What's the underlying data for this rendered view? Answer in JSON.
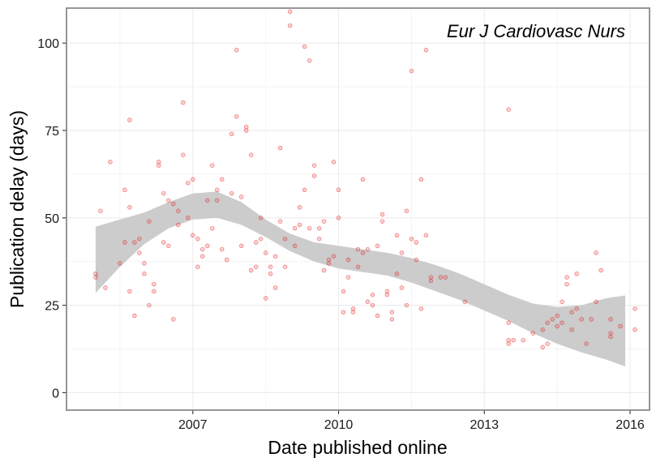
{
  "chart_data": {
    "type": "scatter",
    "title": "",
    "annotation": "Eur J Cardiovasc Nurs",
    "xlabel": "Date published online",
    "ylabel": "Publication delay (days)",
    "x_ticks": [
      2007,
      2010,
      2013,
      2016
    ],
    "y_ticks": [
      0,
      25,
      50,
      75,
      100
    ],
    "xlim": [
      2004.4,
      2016.4
    ],
    "ylim": [
      -5,
      110
    ],
    "grid": true,
    "legend": "none",
    "point_color": "#e41a1c",
    "point_alpha": 0.2,
    "band_color": "#cccccc",
    "smooth": {
      "x": [
        2005.0,
        2005.5,
        2006.0,
        2006.5,
        2007.0,
        2007.5,
        2008.0,
        2008.5,
        2009.0,
        2009.5,
        2010.0,
        2010.5,
        2011.0,
        2011.5,
        2012.0,
        2012.5,
        2013.0,
        2013.5,
        2014.0,
        2014.5,
        2015.0,
        2015.5,
        2015.9
      ],
      "lower": [
        28.5,
        36.0,
        42.5,
        47.0,
        49.5,
        50.0,
        48.0,
        44.5,
        40.5,
        37.5,
        35.5,
        34.5,
        33.5,
        31.5,
        29.0,
        26.5,
        23.5,
        20.5,
        17.0,
        14.0,
        11.5,
        9.5,
        7.5
      ],
      "upper": [
        47.5,
        49.5,
        51.5,
        54.5,
        57.0,
        57.5,
        54.5,
        49.5,
        45.5,
        43.0,
        42.0,
        41.0,
        40.0,
        38.5,
        36.5,
        34.0,
        31.0,
        28.0,
        25.5,
        24.5,
        25.0,
        27.0,
        27.8
      ]
    },
    "points": [
      [
        2005.0,
        34
      ],
      [
        2005.0,
        33
      ],
      [
        2005.1,
        52
      ],
      [
        2005.2,
        30
      ],
      [
        2005.3,
        66
      ],
      [
        2005.5,
        37
      ],
      [
        2005.6,
        43
      ],
      [
        2005.6,
        58
      ],
      [
        2005.7,
        78
      ],
      [
        2005.7,
        53
      ],
      [
        2005.7,
        29
      ],
      [
        2005.8,
        22
      ],
      [
        2005.8,
        43
      ],
      [
        2005.9,
        40
      ],
      [
        2005.9,
        44
      ],
      [
        2006.0,
        34
      ],
      [
        2006.0,
        37
      ],
      [
        2006.1,
        49
      ],
      [
        2006.1,
        25
      ],
      [
        2006.2,
        29
      ],
      [
        2006.2,
        31
      ],
      [
        2006.3,
        66
      ],
      [
        2006.3,
        65
      ],
      [
        2006.4,
        57
      ],
      [
        2006.4,
        43
      ],
      [
        2006.5,
        42
      ],
      [
        2006.5,
        55
      ],
      [
        2006.6,
        54
      ],
      [
        2006.6,
        21
      ],
      [
        2006.7,
        48
      ],
      [
        2006.7,
        52
      ],
      [
        2006.8,
        83
      ],
      [
        2006.8,
        68
      ],
      [
        2006.9,
        60
      ],
      [
        2006.9,
        50
      ],
      [
        2007.0,
        61
      ],
      [
        2007.0,
        45
      ],
      [
        2007.1,
        44
      ],
      [
        2007.1,
        36
      ],
      [
        2007.2,
        41
      ],
      [
        2007.2,
        39
      ],
      [
        2007.3,
        42
      ],
      [
        2007.3,
        55
      ],
      [
        2007.4,
        65
      ],
      [
        2007.4,
        47
      ],
      [
        2007.5,
        55
      ],
      [
        2007.5,
        58
      ],
      [
        2007.6,
        61
      ],
      [
        2007.6,
        41
      ],
      [
        2007.7,
        38
      ],
      [
        2007.8,
        74
      ],
      [
        2007.8,
        57
      ],
      [
        2007.9,
        79
      ],
      [
        2007.9,
        98
      ],
      [
        2008.0,
        42
      ],
      [
        2008.0,
        56
      ],
      [
        2008.1,
        76
      ],
      [
        2008.1,
        75
      ],
      [
        2008.2,
        68
      ],
      [
        2008.2,
        35
      ],
      [
        2008.3,
        36
      ],
      [
        2008.3,
        43
      ],
      [
        2008.4,
        44
      ],
      [
        2008.4,
        50
      ],
      [
        2008.5,
        27
      ],
      [
        2008.5,
        40
      ],
      [
        2008.6,
        34
      ],
      [
        2008.6,
        36
      ],
      [
        2008.7,
        39
      ],
      [
        2008.7,
        30
      ],
      [
        2008.8,
        49
      ],
      [
        2008.8,
        70
      ],
      [
        2008.9,
        44
      ],
      [
        2008.9,
        36
      ],
      [
        2009.0,
        105
      ],
      [
        2009.0,
        109
      ],
      [
        2009.1,
        47
      ],
      [
        2009.1,
        42
      ],
      [
        2009.2,
        53
      ],
      [
        2009.2,
        48
      ],
      [
        2009.3,
        58
      ],
      [
        2009.3,
        99
      ],
      [
        2009.4,
        95
      ],
      [
        2009.4,
        47
      ],
      [
        2009.5,
        65
      ],
      [
        2009.5,
        62
      ],
      [
        2009.6,
        44
      ],
      [
        2009.6,
        47
      ],
      [
        2009.7,
        49
      ],
      [
        2009.7,
        35
      ],
      [
        2009.8,
        38
      ],
      [
        2009.8,
        37
      ],
      [
        2009.9,
        66
      ],
      [
        2009.9,
        39
      ],
      [
        2010.0,
        58
      ],
      [
        2010.0,
        50
      ],
      [
        2010.1,
        29
      ],
      [
        2010.1,
        23
      ],
      [
        2010.2,
        38
      ],
      [
        2010.2,
        33
      ],
      [
        2010.3,
        23
      ],
      [
        2010.3,
        24
      ],
      [
        2010.4,
        41
      ],
      [
        2010.4,
        36
      ],
      [
        2010.5,
        40
      ],
      [
        2010.5,
        61
      ],
      [
        2010.6,
        41
      ],
      [
        2010.6,
        26
      ],
      [
        2010.7,
        28
      ],
      [
        2010.7,
        25
      ],
      [
        2010.8,
        42
      ],
      [
        2010.8,
        22
      ],
      [
        2010.9,
        49
      ],
      [
        2010.9,
        51
      ],
      [
        2011.0,
        28
      ],
      [
        2011.0,
        29
      ],
      [
        2011.1,
        23
      ],
      [
        2011.1,
        21
      ],
      [
        2011.2,
        45
      ],
      [
        2011.2,
        34
      ],
      [
        2011.3,
        30
      ],
      [
        2011.3,
        40
      ],
      [
        2011.4,
        52
      ],
      [
        2011.4,
        25
      ],
      [
        2011.5,
        44
      ],
      [
        2011.5,
        92
      ],
      [
        2011.6,
        43
      ],
      [
        2011.6,
        38
      ],
      [
        2011.7,
        61
      ],
      [
        2011.7,
        24
      ],
      [
        2011.8,
        98
      ],
      [
        2011.8,
        45
      ],
      [
        2011.9,
        33
      ],
      [
        2011.9,
        32
      ],
      [
        2012.1,
        33
      ],
      [
        2012.2,
        33
      ],
      [
        2012.6,
        26
      ],
      [
        2013.5,
        81
      ],
      [
        2013.5,
        15
      ],
      [
        2013.5,
        14
      ],
      [
        2013.5,
        20
      ],
      [
        2013.6,
        15
      ],
      [
        2013.8,
        15
      ],
      [
        2014.0,
        17
      ],
      [
        2014.2,
        18
      ],
      [
        2014.2,
        13
      ],
      [
        2014.3,
        20
      ],
      [
        2014.3,
        14
      ],
      [
        2014.4,
        21
      ],
      [
        2014.5,
        19
      ],
      [
        2014.5,
        22
      ],
      [
        2014.6,
        20
      ],
      [
        2014.6,
        26
      ],
      [
        2014.7,
        31
      ],
      [
        2014.7,
        33
      ],
      [
        2014.8,
        23
      ],
      [
        2014.8,
        18
      ],
      [
        2014.9,
        24
      ],
      [
        2014.9,
        34
      ],
      [
        2015.0,
        21
      ],
      [
        2015.1,
        14
      ],
      [
        2015.2,
        21
      ],
      [
        2015.3,
        40
      ],
      [
        2015.3,
        26
      ],
      [
        2015.4,
        35
      ],
      [
        2015.6,
        17
      ],
      [
        2015.6,
        16
      ],
      [
        2015.6,
        21
      ],
      [
        2015.8,
        19
      ],
      [
        2016.1,
        24
      ],
      [
        2016.1,
        18
      ]
    ]
  }
}
